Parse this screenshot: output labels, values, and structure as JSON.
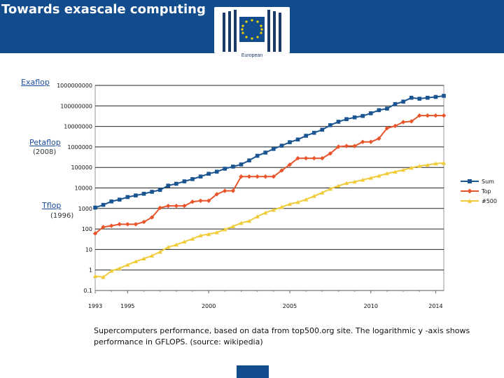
{
  "header": {
    "title": "Towards exascale computing",
    "logo_text": "European"
  },
  "annotations": [
    {
      "text": "Exaflop"
    },
    {
      "text": "Petaflop"
    },
    {
      "text": "(2008)"
    },
    {
      "text": "Tflop"
    },
    {
      "text": "(1996)"
    }
  ],
  "caption": "Supercomputers performance, based on data from top500.org site. The logarithmic y -axis shows performance in GFLOPS. (source: wikipedia)",
  "colors": {
    "header": "#134c8c",
    "sum": "#1b5591",
    "top": "#e8552a",
    "n500": "#f0cc3a"
  },
  "chart_data": {
    "type": "line",
    "title": "",
    "xlabel": "",
    "ylabel": "",
    "yscale": "log",
    "ylim": [
      0.1,
      1000000000
    ],
    "xlim": [
      1993,
      2014
    ],
    "grid": true,
    "legend_placement": "right",
    "yticks": [
      "1000000000",
      "100000000",
      "10000000",
      "1000000",
      "100000",
      "10000",
      "1000",
      "100",
      "10",
      "1",
      "0.1"
    ],
    "xticks": [
      "1993",
      "1995",
      "2000",
      "2005",
      "2010",
      "2014"
    ],
    "series": [
      {
        "name": "Sum",
        "points": [
          [
            1993.0,
            1100
          ],
          [
            1993.5,
            1500
          ],
          [
            1994.0,
            2200
          ],
          [
            1994.5,
            2700
          ],
          [
            1995.0,
            3600
          ],
          [
            1995.5,
            4300
          ],
          [
            1996.0,
            5200
          ],
          [
            1996.5,
            6500
          ],
          [
            1997.0,
            8000
          ],
          [
            1997.5,
            13000
          ],
          [
            1998.0,
            16000
          ],
          [
            1998.5,
            21000
          ],
          [
            1999.0,
            27000
          ],
          [
            1999.5,
            36000
          ],
          [
            2000.0,
            49000
          ],
          [
            2000.5,
            62000
          ],
          [
            2001.0,
            87000
          ],
          [
            2001.5,
            110000
          ],
          [
            2002.0,
            140000
          ],
          [
            2002.5,
            220000
          ],
          [
            2003.0,
            370000
          ],
          [
            2003.5,
            530000
          ],
          [
            2004.0,
            800000
          ],
          [
            2004.5,
            1150000
          ],
          [
            2005.0,
            1700000
          ],
          [
            2005.5,
            2300000
          ],
          [
            2006.0,
            3500000
          ],
          [
            2006.5,
            4900000
          ],
          [
            2007.0,
            6900000
          ],
          [
            2007.5,
            11500000
          ],
          [
            2008.0,
            16900000
          ],
          [
            2008.5,
            22600000
          ],
          [
            2009.0,
            27600000
          ],
          [
            2009.5,
            32400000
          ],
          [
            2010.0,
            43700000
          ],
          [
            2010.5,
            62000000
          ],
          [
            2011.0,
            74000000
          ],
          [
            2011.5,
            123000000
          ],
          [
            2012.0,
            162000000
          ],
          [
            2012.5,
            250000000
          ],
          [
            2013.0,
            224000000
          ],
          [
            2013.5,
            250000000
          ],
          [
            2014.0,
            274000000
          ],
          [
            2014.5,
            309000000
          ]
        ]
      },
      {
        "name": "Top",
        "points": [
          [
            1993.0,
            60
          ],
          [
            1993.5,
            124
          ],
          [
            1994.0,
            143
          ],
          [
            1994.5,
            170
          ],
          [
            1995.0,
            170
          ],
          [
            1995.5,
            170
          ],
          [
            1996.0,
            220
          ],
          [
            1996.5,
            368
          ],
          [
            1997.0,
            1068
          ],
          [
            1997.5,
            1338
          ],
          [
            1998.0,
            1338
          ],
          [
            1998.5,
            1338
          ],
          [
            1999.0,
            2121
          ],
          [
            1999.5,
            2379
          ],
          [
            2000.0,
            2379
          ],
          [
            2000.5,
            4938
          ],
          [
            2001.0,
            7226
          ],
          [
            2001.5,
            7226
          ],
          [
            2002.0,
            35860
          ],
          [
            2002.5,
            35860
          ],
          [
            2003.0,
            35860
          ],
          [
            2003.5,
            35860
          ],
          [
            2004.0,
            35860
          ],
          [
            2004.5,
            70720
          ],
          [
            2005.0,
            136800
          ],
          [
            2005.5,
            280600
          ],
          [
            2006.0,
            280600
          ],
          [
            2006.5,
            280600
          ],
          [
            2007.0,
            280600
          ],
          [
            2007.5,
            478200
          ],
          [
            2008.0,
            1026000
          ],
          [
            2008.5,
            1105000
          ],
          [
            2009.0,
            1105000
          ],
          [
            2009.5,
            1759000
          ],
          [
            2010.0,
            1759000
          ],
          [
            2010.5,
            2566000
          ],
          [
            2011.0,
            8162000
          ],
          [
            2011.5,
            10510000
          ],
          [
            2012.0,
            16320000
          ],
          [
            2012.5,
            17590000
          ],
          [
            2013.0,
            33860000
          ],
          [
            2013.5,
            33860000
          ],
          [
            2014.0,
            33860000
          ],
          [
            2014.5,
            33860000
          ]
        ]
      },
      {
        "name": "#500",
        "points": [
          [
            1993.0,
            0.5
          ],
          [
            1993.5,
            0.45
          ],
          [
            1994.0,
            0.9
          ],
          [
            1994.5,
            1.2
          ],
          [
            1995.0,
            1.8
          ],
          [
            1995.5,
            2.6
          ],
          [
            1996.0,
            3.6
          ],
          [
            1996.5,
            5
          ],
          [
            1997.0,
            7.7
          ],
          [
            1997.5,
            13
          ],
          [
            1998.0,
            17
          ],
          [
            1998.5,
            24
          ],
          [
            1999.0,
            33
          ],
          [
            1999.5,
            48
          ],
          [
            2000.0,
            56
          ],
          [
            2000.5,
            68
          ],
          [
            2001.0,
            95
          ],
          [
            2001.5,
            134
          ],
          [
            2002.0,
            196
          ],
          [
            2002.5,
            245
          ],
          [
            2003.0,
            403
          ],
          [
            2003.5,
            621
          ],
          [
            2004.0,
            851
          ],
          [
            2004.5,
            1170
          ],
          [
            2005.0,
            1640
          ],
          [
            2005.5,
            2030
          ],
          [
            2006.0,
            2740
          ],
          [
            2006.5,
            4000
          ],
          [
            2007.0,
            5900
          ],
          [
            2007.5,
            9000
          ],
          [
            2008.0,
            12600
          ],
          [
            2008.5,
            17100
          ],
          [
            2009.0,
            20100
          ],
          [
            2009.5,
            24700
          ],
          [
            2010.0,
            31000
          ],
          [
            2010.5,
            39000
          ],
          [
            2011.0,
            51000
          ],
          [
            2011.5,
            61000
          ],
          [
            2012.0,
            76000
          ],
          [
            2012.5,
            96000
          ],
          [
            2013.0,
            117000
          ],
          [
            2013.5,
            133000
          ],
          [
            2014.0,
            154000
          ],
          [
            2014.5,
            164000
          ]
        ]
      }
    ]
  }
}
